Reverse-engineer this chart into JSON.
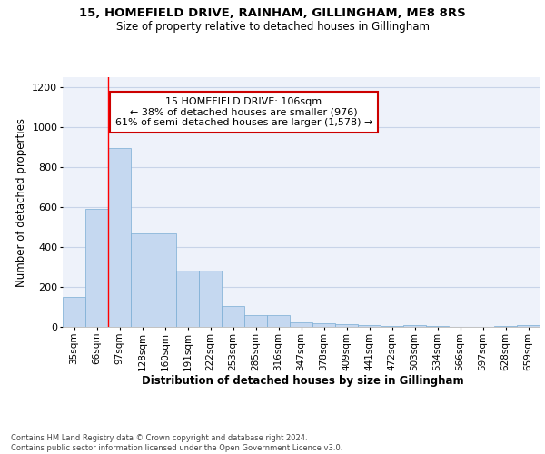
{
  "title_line1": "15, HOMEFIELD DRIVE, RAINHAM, GILLINGHAM, ME8 8RS",
  "title_line2": "Size of property relative to detached houses in Gillingham",
  "xlabel": "Distribution of detached houses by size in Gillingham",
  "ylabel": "Number of detached properties",
  "bin_labels": [
    "35sqm",
    "66sqm",
    "97sqm",
    "128sqm",
    "160sqm",
    "191sqm",
    "222sqm",
    "253sqm",
    "285sqm",
    "316sqm",
    "347sqm",
    "378sqm",
    "409sqm",
    "441sqm",
    "472sqm",
    "503sqm",
    "534sqm",
    "566sqm",
    "597sqm",
    "628sqm",
    "659sqm"
  ],
  "bar_values": [
    150,
    590,
    895,
    470,
    470,
    280,
    280,
    103,
    60,
    60,
    25,
    20,
    12,
    7,
    5,
    8,
    3,
    2,
    2,
    3,
    8
  ],
  "bar_color": "#c5d8f0",
  "bar_edge_color": "#7aadd4",
  "grid_color": "#c8d4e8",
  "background_color": "#eef2fa",
  "red_line_bin": 2,
  "annotation_text": "15 HOMEFIELD DRIVE: 106sqm\n← 38% of detached houses are smaller (976)\n61% of semi-detached houses are larger (1,578) →",
  "annotation_box_facecolor": "#ffffff",
  "annotation_box_edgecolor": "#cc0000",
  "ylim": [
    0,
    1250
  ],
  "yticks": [
    0,
    200,
    400,
    600,
    800,
    1000,
    1200
  ],
  "footer_text": "Contains HM Land Registry data © Crown copyright and database right 2024.\nContains public sector information licensed under the Open Government Licence v3.0."
}
